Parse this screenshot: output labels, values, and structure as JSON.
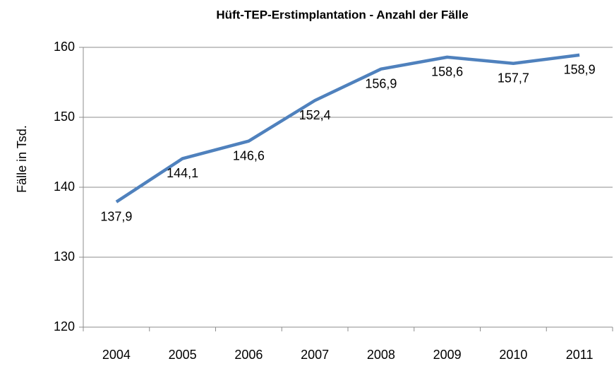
{
  "chart_data": {
    "type": "line",
    "title": "Hüft-TEP-Erstimplantation  - Anzahl der Fälle",
    "y_label": "Fälle in Tsd.",
    "categories": [
      "2004",
      "2005",
      "2006",
      "2007",
      "2008",
      "2009",
      "2010",
      "2011"
    ],
    "values": [
      137.9,
      144.1,
      146.6,
      152.4,
      156.9,
      158.6,
      157.7,
      158.9
    ],
    "value_labels": [
      "137,9",
      "144,1",
      "146,6",
      "152,4",
      "156,9",
      "158,6",
      "157,7",
      "158,9"
    ],
    "color": "#4f81bd",
    "ylim": [
      120,
      160
    ],
    "yticks": [
      120,
      130,
      140,
      150,
      160
    ],
    "grid": true
  }
}
